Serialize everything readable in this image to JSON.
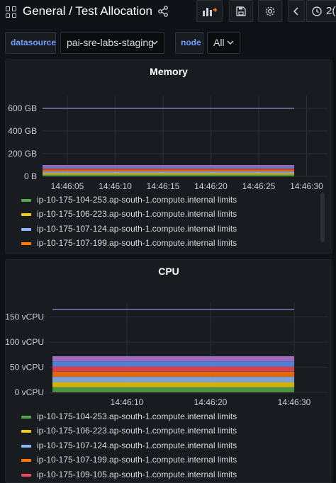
{
  "header": {
    "title": "General  / Test Allocation",
    "time_label": "2("
  },
  "variables": [
    {
      "label": "datasource",
      "value": "pai-sre-labs-staging"
    },
    {
      "label": "node",
      "value": "All"
    }
  ],
  "panels": [
    {
      "title": "Memory",
      "legend": [
        {
          "label": "ip-10-175-104-253.ap-south-1.compute.internal limits",
          "color": "#56a64b"
        },
        {
          "label": "ip-10-175-106-223.ap-south-1.compute.internal limits",
          "color": "#f2cc0c"
        },
        {
          "label": "ip-10-175-107-124.ap-south-1.compute.internal limits",
          "color": "#8ab8ff"
        },
        {
          "label": "ip-10-175-107-199.ap-south-1.compute.internal limits",
          "color": "#ff780a"
        }
      ]
    },
    {
      "title": "CPU",
      "legend": [
        {
          "label": "ip-10-175-104-253.ap-south-1.compute.internal limits",
          "color": "#56a64b"
        },
        {
          "label": "ip-10-175-106-223.ap-south-1.compute.internal limits",
          "color": "#f2cc0c"
        },
        {
          "label": "ip-10-175-107-124.ap-south-1.compute.internal limits",
          "color": "#8ab8ff"
        },
        {
          "label": "ip-10-175-107-199.ap-south-1.compute.internal limits",
          "color": "#ff780a"
        },
        {
          "label": "ip-10-175-109-105.ap-south-1.compute.internal limits",
          "color": "#f2495c"
        }
      ]
    }
  ],
  "chart_data": [
    {
      "type": "area",
      "title": "Memory",
      "x": [
        "14:46:05",
        "14:46:10",
        "14:46:15",
        "14:46:20",
        "14:46:25",
        "14:46:30"
      ],
      "y_ticks": [
        "0 B",
        "200 GB",
        "400 GB",
        "600 GB"
      ],
      "ylim": [
        0,
        650
      ],
      "y_unit": "GB",
      "stack_colors": [
        "#56a64b",
        "#f2cc0c",
        "#8ab8ff",
        "#ff780a",
        "#f2495c",
        "#5794f2",
        "#b877d9"
      ],
      "stack_total": 100,
      "capacity_line": 600
    },
    {
      "type": "area",
      "title": "CPU",
      "x": [
        "14:46:10",
        "14:46:20",
        "14:46:30"
      ],
      "y_ticks": [
        "0 vCPU",
        "50 vCPU",
        "100 vCPU",
        "150 vCPU"
      ],
      "ylim": [
        0,
        165
      ],
      "y_unit": "vCPU",
      "stack_colors": [
        "#56a64b",
        "#f2cc0c",
        "#8ab8ff",
        "#ff780a",
        "#f2495c",
        "#5794f2",
        "#b877d9"
      ],
      "stack_total": 72,
      "capacity_line": 165
    }
  ]
}
